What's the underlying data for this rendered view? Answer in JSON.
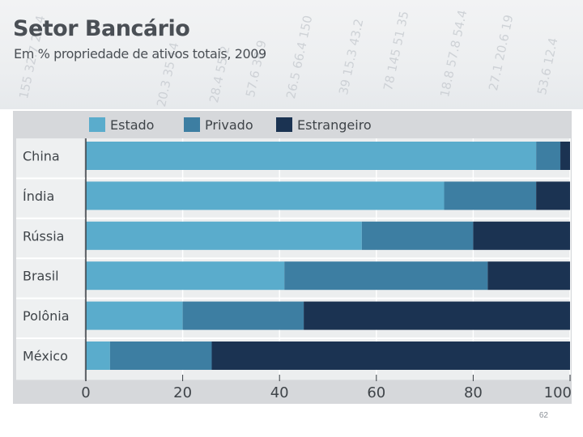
{
  "slide": {
    "title": "Setor Bancário",
    "subtitle": "Em % propriedade de ativos totais, 2009",
    "page_number": "62"
  },
  "chart_data": {
    "type": "bar",
    "orientation": "horizontal",
    "stacked": true,
    "title": "Setor Bancário",
    "subtitle": "Em % propriedade de ativos totais, 2009",
    "categories": [
      "China",
      "Índia",
      "Rússia",
      "Brasil",
      "Polônia",
      "México"
    ],
    "series": [
      {
        "name": "Estado",
        "color": "#5aaccc",
        "values": [
          93,
          74,
          57,
          41,
          20,
          5
        ]
      },
      {
        "name": "Privado",
        "color": "#3d7ea2",
        "values": [
          5,
          19,
          23,
          42,
          25,
          21
        ]
      },
      {
        "name": "Estrangeiro",
        "color": "#1b3352",
        "values": [
          2,
          7,
          20,
          17,
          55,
          74
        ]
      }
    ],
    "xlim": [
      0,
      100
    ],
    "xticks": [
      0,
      20,
      40,
      60,
      80,
      100
    ],
    "xlabel": "",
    "ylabel": "",
    "legend_position": "top",
    "grid": true
  }
}
